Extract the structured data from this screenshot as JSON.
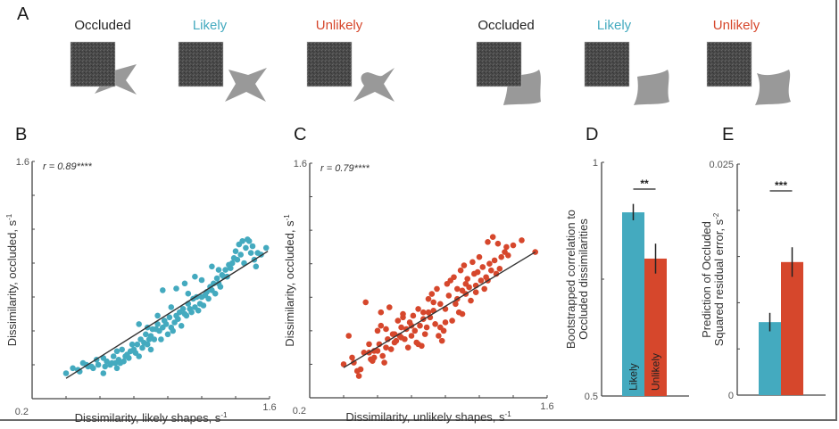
{
  "colors": {
    "likely": "#44aabf",
    "unlikely": "#d6472c",
    "occluded_text": "#222222",
    "occluder": "#4a4a4a",
    "shape": "#999999",
    "axis": "#444444",
    "fit_line": "#333333"
  },
  "panels": {
    "A": "A",
    "B": "B",
    "C": "C",
    "D": "D",
    "E": "E"
  },
  "stimuli": {
    "groups": [
      {
        "name": "star",
        "items": [
          {
            "label": "Occluded",
            "kind": "occluded"
          },
          {
            "label": "Likely",
            "kind": "likely"
          },
          {
            "label": "Unlikely",
            "kind": "unlikely"
          }
        ]
      },
      {
        "name": "rounded",
        "items": [
          {
            "label": "Occluded",
            "kind": "occluded"
          },
          {
            "label": "Likely",
            "kind": "likely"
          },
          {
            "label": "Unlikely",
            "kind": "unlikely"
          }
        ]
      }
    ]
  },
  "chart_data": [
    {
      "id": "B",
      "type": "scatter",
      "title": "",
      "annotation": "r = 0.89****",
      "xlabel": "Dissimilarity, likely shapes, s",
      "xlabel_sup": "-1",
      "ylabel": "Dissimilarity, occluded, s",
      "ylabel_sup": "-1",
      "xlim": [
        0.2,
        1.6
      ],
      "ylim": [
        0.2,
        1.6
      ],
      "tick_labels": {
        "x_min": "0.2",
        "x_max": "1.6",
        "y_min": "0.2",
        "y_max": "1.6"
      },
      "ticks": [
        0.2,
        0.4,
        0.6,
        0.8,
        1.0,
        1.2,
        1.4,
        1.6
      ],
      "fit_line": {
        "x": [
          0.4,
          1.59
        ],
        "y": [
          0.32,
          1.07
        ]
      },
      "color_key": "likely",
      "points": [
        [
          0.4,
          0.35
        ],
        [
          0.44,
          0.38
        ],
        [
          0.47,
          0.37
        ],
        [
          0.48,
          0.36
        ],
        [
          0.52,
          0.4
        ],
        [
          0.53,
          0.39
        ],
        [
          0.55,
          0.39
        ],
        [
          0.56,
          0.38
        ],
        [
          0.59,
          0.4
        ],
        [
          0.62,
          0.35
        ],
        [
          0.63,
          0.39
        ],
        [
          0.64,
          0.42
        ],
        [
          0.66,
          0.4
        ],
        [
          0.67,
          0.41
        ],
        [
          0.68,
          0.45
        ],
        [
          0.69,
          0.41
        ],
        [
          0.7,
          0.38
        ],
        [
          0.71,
          0.43
        ],
        [
          0.72,
          0.41
        ],
        [
          0.73,
          0.49
        ],
        [
          0.74,
          0.42
        ],
        [
          0.75,
          0.45
        ],
        [
          0.76,
          0.46
        ],
        [
          0.77,
          0.44
        ],
        [
          0.78,
          0.48
        ],
        [
          0.79,
          0.52
        ],
        [
          0.8,
          0.49
        ],
        [
          0.81,
          0.47
        ],
        [
          0.82,
          0.52
        ],
        [
          0.83,
          0.45
        ],
        [
          0.84,
          0.55
        ],
        [
          0.85,
          0.5
        ],
        [
          0.86,
          0.53
        ],
        [
          0.87,
          0.58
        ],
        [
          0.88,
          0.52
        ],
        [
          0.89,
          0.55
        ],
        [
          0.9,
          0.57
        ],
        [
          0.91,
          0.61
        ],
        [
          0.92,
          0.55
        ],
        [
          0.93,
          0.61
        ],
        [
          0.94,
          0.64
        ],
        [
          0.95,
          0.6
        ],
        [
          0.96,
          0.55
        ],
        [
          0.97,
          0.62
        ],
        [
          0.98,
          0.66
        ],
        [
          0.99,
          0.64
        ],
        [
          1.0,
          0.58
        ],
        [
          1.01,
          0.68
        ],
        [
          1.02,
          0.62
        ],
        [
          1.03,
          0.6
        ],
        [
          1.04,
          0.65
        ],
        [
          1.05,
          0.69
        ],
        [
          1.06,
          0.67
        ],
        [
          1.07,
          0.71
        ],
        [
          1.08,
          0.63
        ],
        [
          1.09,
          0.73
        ],
        [
          1.1,
          0.7
        ],
        [
          1.11,
          0.69
        ],
        [
          1.12,
          0.76
        ],
        [
          1.13,
          0.73
        ],
        [
          1.14,
          0.71
        ],
        [
          1.15,
          0.79
        ],
        [
          1.16,
          0.74
        ],
        [
          1.17,
          0.8
        ],
        [
          1.18,
          0.72
        ],
        [
          1.19,
          0.76
        ],
        [
          1.2,
          0.8
        ],
        [
          1.21,
          0.75
        ],
        [
          1.22,
          0.81
        ],
        [
          1.23,
          0.83
        ],
        [
          1.24,
          0.79
        ],
        [
          1.25,
          0.86
        ],
        [
          1.26,
          0.84
        ],
        [
          1.27,
          0.88
        ],
        [
          1.28,
          0.82
        ],
        [
          1.29,
          0.91
        ],
        [
          1.3,
          0.88
        ],
        [
          1.31,
          0.86
        ],
        [
          1.32,
          0.93
        ],
        [
          1.33,
          0.92
        ],
        [
          1.34,
          0.96
        ],
        [
          1.35,
          0.92
        ],
        [
          1.36,
          0.99
        ],
        [
          1.37,
          0.97
        ],
        [
          1.38,
          1.0
        ],
        [
          1.39,
          1.03
        ],
        [
          1.4,
          1.07
        ],
        [
          1.41,
          1.02
        ],
        [
          1.42,
          1.11
        ],
        [
          1.43,
          1.05
        ],
        [
          1.44,
          1.13
        ],
        [
          1.45,
          1.0
        ],
        [
          1.46,
          1.09
        ],
        [
          1.47,
          1.14
        ],
        [
          1.48,
          1.13
        ],
        [
          1.49,
          1.06
        ],
        [
          1.5,
          1.1
        ],
        [
          1.51,
          1.02
        ],
        [
          1.52,
          0.98
        ],
        [
          1.53,
          1.06
        ],
        [
          1.55,
          1.05
        ],
        [
          1.58,
          1.09
        ],
        [
          0.7,
          0.48
        ],
        [
          0.9,
          0.49
        ],
        [
          0.97,
          0.84
        ],
        [
          0.83,
          0.64
        ],
        [
          1.1,
          0.88
        ],
        [
          1.16,
          0.92
        ],
        [
          1.26,
          0.98
        ],
        [
          1.05,
          0.85
        ],
        [
          0.62,
          0.44
        ],
        [
          0.58,
          0.43
        ],
        [
          0.5,
          0.41
        ],
        [
          0.88,
          0.62
        ],
        [
          0.94,
          0.69
        ],
        [
          1.02,
          0.74
        ],
        [
          1.12,
          0.82
        ],
        [
          1.2,
          0.9
        ],
        [
          1.3,
          0.96
        ]
      ]
    },
    {
      "id": "C",
      "type": "scatter",
      "title": "",
      "annotation": "r = 0.79****",
      "xlabel": "Dissimilarity, unlikely shapes, s",
      "xlabel_sup": "-1",
      "ylabel": "Dissimilarity, occluded, s",
      "ylabel_sup": "-1",
      "xlim": [
        0.2,
        1.6
      ],
      "ylim": [
        0.2,
        1.6
      ],
      "tick_labels": {
        "x_min": "0.2",
        "x_max": "1.6",
        "y_min": "0.2",
        "y_max": "1.6"
      },
      "ticks": [
        0.2,
        0.4,
        0.6,
        0.8,
        1.0,
        1.2,
        1.4,
        1.6
      ],
      "fit_line": {
        "x": [
          0.4,
          1.53
        ],
        "y": [
          0.38,
          1.07
        ]
      },
      "color_key": "unlikely",
      "points": [
        [
          0.4,
          0.4
        ],
        [
          0.43,
          0.57
        ],
        [
          0.46,
          0.41
        ],
        [
          0.49,
          0.33
        ],
        [
          0.5,
          0.37
        ],
        [
          0.53,
          0.77
        ],
        [
          0.55,
          0.47
        ],
        [
          0.56,
          0.43
        ],
        [
          0.57,
          0.42
        ],
        [
          0.58,
          0.48
        ],
        [
          0.6,
          0.6
        ],
        [
          0.61,
          0.52
        ],
        [
          0.62,
          0.71
        ],
        [
          0.63,
          0.45
        ],
        [
          0.64,
          0.41
        ],
        [
          0.65,
          0.5
        ],
        [
          0.66,
          0.55
        ],
        [
          0.67,
          0.74
        ],
        [
          0.68,
          0.49
        ],
        [
          0.69,
          0.58
        ],
        [
          0.7,
          0.58
        ],
        [
          0.71,
          0.54
        ],
        [
          0.72,
          0.66
        ],
        [
          0.73,
          0.57
        ],
        [
          0.74,
          0.62
        ],
        [
          0.75,
          0.68
        ],
        [
          0.76,
          0.55
        ],
        [
          0.77,
          0.61
        ],
        [
          0.78,
          0.5
        ],
        [
          0.79,
          0.65
        ],
        [
          0.8,
          0.57
        ],
        [
          0.81,
          0.69
        ],
        [
          0.82,
          0.6
        ],
        [
          0.83,
          0.53
        ],
        [
          0.84,
          0.73
        ],
        [
          0.85,
          0.63
        ],
        [
          0.86,
          0.51
        ],
        [
          0.87,
          0.71
        ],
        [
          0.88,
          0.58
        ],
        [
          0.89,
          0.62
        ],
        [
          0.9,
          0.79
        ],
        [
          0.91,
          0.68
        ],
        [
          0.92,
          0.82
        ],
        [
          0.93,
          0.72
        ],
        [
          0.94,
          0.64
        ],
        [
          0.95,
          0.85
        ],
        [
          0.96,
          0.57
        ],
        [
          0.97,
          0.76
        ],
        [
          0.98,
          0.54
        ],
        [
          0.99,
          0.6
        ],
        [
          1.0,
          0.65
        ],
        [
          1.01,
          0.88
        ],
        [
          1.02,
          0.81
        ],
        [
          1.03,
          0.9
        ],
        [
          1.04,
          0.66
        ],
        [
          1.05,
          0.92
        ],
        [
          1.06,
          0.76
        ],
        [
          1.07,
          0.85
        ],
        [
          1.08,
          0.71
        ],
        [
          1.09,
          0.96
        ],
        [
          1.1,
          0.84
        ],
        [
          1.11,
          0.99
        ],
        [
          1.12,
          0.82
        ],
        [
          1.13,
          0.91
        ],
        [
          1.14,
          0.86
        ],
        [
          1.15,
          0.78
        ],
        [
          1.16,
          1.01
        ],
        [
          1.17,
          0.94
        ],
        [
          1.18,
          0.87
        ],
        [
          1.19,
          0.95
        ],
        [
          1.2,
          1.04
        ],
        [
          1.21,
          0.9
        ],
        [
          1.22,
          0.98
        ],
        [
          1.23,
          0.85
        ],
        [
          1.24,
          0.92
        ],
        [
          1.25,
          1.13
        ],
        [
          1.26,
          1.0
        ],
        [
          1.27,
          0.96
        ],
        [
          1.28,
          1.16
        ],
        [
          1.29,
          1.02
        ],
        [
          1.3,
          0.94
        ],
        [
          1.31,
          1.12
        ],
        [
          1.32,
          0.97
        ],
        [
          1.33,
          1.04
        ],
        [
          1.35,
          1.07
        ],
        [
          1.36,
          1.1
        ],
        [
          1.37,
          1.05
        ],
        [
          1.4,
          1.11
        ],
        [
          1.45,
          1.14
        ],
        [
          1.53,
          1.07
        ],
        [
          0.45,
          0.44
        ],
        [
          0.52,
          0.47
        ],
        [
          0.6,
          0.48
        ],
        [
          0.65,
          0.61
        ],
        [
          0.74,
          0.56
        ],
        [
          0.8,
          0.63
        ],
        [
          0.87,
          0.67
        ],
        [
          0.93,
          0.77
        ],
        [
          1.0,
          0.73
        ],
        [
          1.07,
          0.79
        ],
        [
          1.12,
          0.88
        ],
        [
          1.18,
          0.83
        ],
        [
          1.25,
          0.9
        ],
        [
          0.55,
          0.52
        ],
        [
          0.7,
          0.53
        ],
        [
          0.84,
          0.52
        ],
        [
          0.97,
          0.62
        ],
        [
          1.1,
          0.7
        ],
        [
          0.62,
          0.63
        ],
        [
          0.75,
          0.7
        ],
        [
          0.9,
          0.71
        ],
        [
          0.58,
          0.44
        ],
        [
          0.48,
          0.36
        ]
      ]
    },
    {
      "id": "D",
      "type": "bar",
      "ylabel_line1": "Bootstrapped correlation to",
      "ylabel_line2": "Occluded dissimilarities",
      "ylim": [
        0.5,
        1.0
      ],
      "tick_labels": {
        "y_min": "0.5",
        "y_max": "1"
      },
      "ticks": [
        0.5,
        0.75,
        1.0
      ],
      "categories": [
        "Likely",
        "Unlikely"
      ],
      "values": [
        0.893,
        0.794
      ],
      "errors": [
        [
          0.876,
          0.911
        ],
        [
          0.762,
          0.826
        ]
      ],
      "significance": "**",
      "color_keys": [
        "likely",
        "unlikely"
      ]
    },
    {
      "id": "E",
      "type": "bar",
      "ylabel_line1": "Prediction of Occluded",
      "ylabel_line2": "Squared residual error, s",
      "ylabel_sup": "-2",
      "ylim": [
        0,
        0.025
      ],
      "tick_labels": {
        "y_min": "0",
        "y_max": "0.025"
      },
      "ticks": [
        0,
        0.005,
        0.01,
        0.015,
        0.02,
        0.025
      ],
      "categories": [
        "Likely",
        "Unlikely"
      ],
      "values": [
        0.0079,
        0.0144
      ],
      "errors": [
        [
          0.0069,
          0.0089
        ],
        [
          0.0128,
          0.016
        ]
      ],
      "significance": "***",
      "color_keys": [
        "likely",
        "unlikely"
      ]
    }
  ]
}
